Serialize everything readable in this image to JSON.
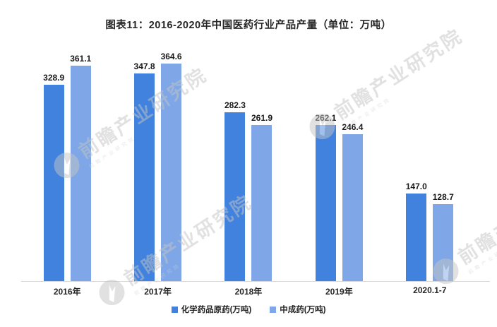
{
  "title": "图表11：2016-2020年中国医药行业产品产量（单位：万吨）",
  "chart_data": {
    "type": "bar",
    "categories": [
      "2016年",
      "2017年",
      "2018年",
      "2019年",
      "2020.1-7"
    ],
    "series": [
      {
        "name": "化学药品原药(万吨)",
        "color": "#4182de",
        "values": [
          328.9,
          347.8,
          282.3,
          262.1,
          147.0
        ]
      },
      {
        "name": "中成药(万吨)",
        "color": "#7fa7e8",
        "values": [
          361.1,
          364.6,
          261.9,
          246.4,
          128.7
        ]
      }
    ],
    "title": "图表11：2016-2020年中国医药行业产品产量（单位：万吨）",
    "xlabel": "",
    "ylabel": "",
    "ylim": [
      0,
      400
    ],
    "grid": false,
    "legend_position": "bottom",
    "value_labels": true,
    "value_label_format": "one-decimal"
  },
  "legend": {
    "items": [
      {
        "label": "化学药品原药(万吨)",
        "color": "#4182de"
      },
      {
        "label": "中成药(万吨)",
        "color": "#7fa7e8"
      }
    ]
  },
  "watermark": {
    "text": "前瞻产业研究院",
    "logo": "qianzhan-circle-logo"
  },
  "colors": {
    "bar_dark_blue": "#4182de",
    "bar_light_blue": "#7fa7e8",
    "axis_line": "#d9d9d9",
    "label_text": "#262626",
    "watermark_gray": "#c4c4c4"
  }
}
